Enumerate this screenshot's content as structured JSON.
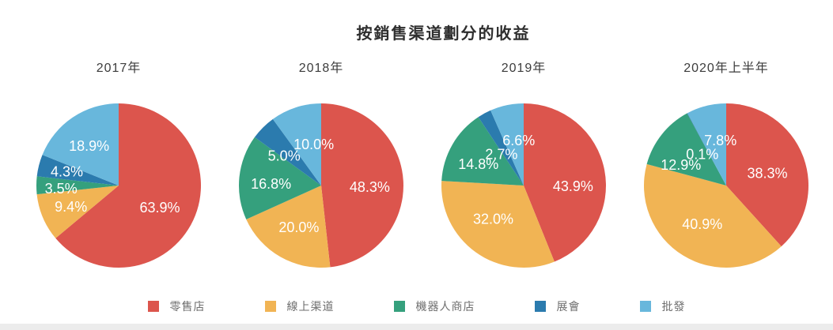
{
  "chart_data": {
    "type": "pie",
    "title": "按銷售渠道劃分的收益",
    "legend_position": "bottom",
    "legend": [
      {
        "label": "零售店",
        "color": "#DC554D"
      },
      {
        "label": "線上渠道",
        "color": "#F1B454"
      },
      {
        "label": "機器人商店",
        "color": "#35A07D"
      },
      {
        "label": "展會",
        "color": "#2B7BAE"
      },
      {
        "label": "批發",
        "color": "#68B7DC"
      }
    ],
    "pies": [
      {
        "title": "2017年",
        "values": [
          63.9,
          9.4,
          3.5,
          4.3,
          18.9
        ],
        "value_labels": [
          "63.9%",
          "9.4%",
          "3.5%",
          "4.3%",
          "18.9%"
        ]
      },
      {
        "title": "2018年",
        "values": [
          48.3,
          20.0,
          16.8,
          5.0,
          10.0
        ],
        "value_labels": [
          "48.3%",
          "20.0%",
          "16.8%",
          "5.0%",
          "10.0%"
        ]
      },
      {
        "title": "2019年",
        "values": [
          43.9,
          32.0,
          14.8,
          2.7,
          6.6
        ],
        "value_labels": [
          "43.9%",
          "32.0%",
          "14.8%",
          "2.7%",
          "6.6%"
        ]
      },
      {
        "title": "2020年上半年",
        "values": [
          38.3,
          40.9,
          12.9,
          0.1,
          7.8
        ],
        "value_labels": [
          "38.3%",
          "40.9%",
          "12.9%",
          "0.1%",
          "7.8%"
        ]
      }
    ]
  }
}
